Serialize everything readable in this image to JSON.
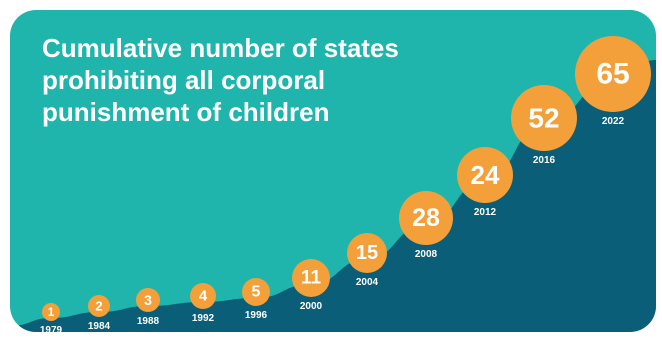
{
  "colors": {
    "background": "#1fb5ac",
    "area": "#0b5e78",
    "bubble": "#f3a03a",
    "text": "#ffffff"
  },
  "chart_data": {
    "type": "area",
    "title": "Cumulative number of states prohibiting all corporal punishment of children",
    "x": [
      "1979",
      "1984",
      "1988",
      "1992",
      "1996",
      "2000",
      "2004",
      "2008",
      "2012",
      "2016",
      "2022"
    ],
    "values": [
      1,
      2,
      3,
      4,
      5,
      11,
      15,
      28,
      24,
      52,
      65
    ],
    "data_labels": [
      "1",
      "2",
      "3",
      "4",
      "5",
      "11",
      "15",
      "28",
      "24",
      "52",
      "65"
    ],
    "grid": false,
    "legend": "none"
  }
}
